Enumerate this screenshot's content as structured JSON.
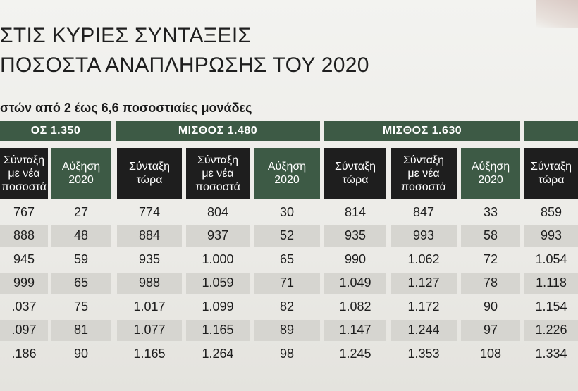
{
  "headline": {
    "line1": "ΣΤΙΣ ΚΥΡΙΕΣ ΣΥΝΤΑΞΕΙΣ",
    "line2": "ΠΟΣΟΣΤΑ ΑΝΑΠΛΗΡΩΣΗΣ ΤΟΥ 2020"
  },
  "subtitle": "στών από 2 έως 6,6 ποσοστιαίες μονάδες",
  "groups": [
    {
      "label": "ΟΣ 1.350"
    },
    {
      "label": "ΜΙΣΘΟΣ 1.480"
    },
    {
      "label": "ΜΙΣΘΟΣ 1.630"
    },
    {
      "label": ""
    }
  ],
  "columns": [
    {
      "label": "Σύνταξη\nμε νέα\nποσοστά"
    },
    {
      "label": "Αύξηση\n2020"
    },
    {
      "label": "Σύνταξη\nτώρα"
    },
    {
      "label": "Σύνταξη\nμε νέα\nποσοστά"
    },
    {
      "label": "Αύξηση\n2020"
    },
    {
      "label": "Σύνταξη\nτώρα"
    },
    {
      "label": "Σύνταξη\nμε νέα\nποσοστά"
    },
    {
      "label": "Αύξηση\n2020"
    },
    {
      "label": "Σύνταξη\nτώρα"
    }
  ],
  "rows": [
    [
      "767",
      "27",
      "774",
      "804",
      "30",
      "814",
      "847",
      "33",
      "859"
    ],
    [
      "888",
      "48",
      "884",
      "937",
      "52",
      "935",
      "993",
      "58",
      "993"
    ],
    [
      "945",
      "59",
      "935",
      "1.000",
      "65",
      "990",
      "1.062",
      "72",
      "1.054"
    ],
    [
      "999",
      "65",
      "988",
      "1.059",
      "71",
      "1.049",
      "1.127",
      "78",
      "1.118"
    ],
    [
      ".037",
      "75",
      "1.017",
      "1.099",
      "82",
      "1.082",
      "1.172",
      "90",
      "1.154"
    ],
    [
      ".097",
      "81",
      "1.077",
      "1.165",
      "89",
      "1.147",
      "1.244",
      "97",
      "1.226"
    ],
    [
      ".186",
      "90",
      "1.165",
      "1.264",
      "98",
      "1.245",
      "1.353",
      "108",
      "1.334"
    ]
  ],
  "colors": {
    "band_green": "#3d5a45",
    "header_dark": "#1e1e1e",
    "row_shade": "#d6d5d0"
  }
}
